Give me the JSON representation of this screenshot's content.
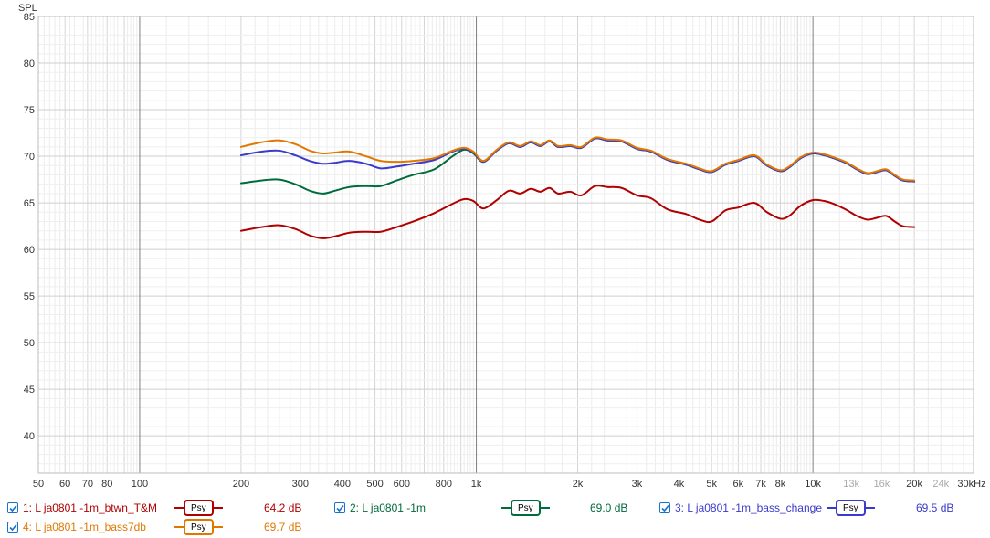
{
  "chart_data": {
    "type": "line",
    "title": "",
    "ylabel": "SPL",
    "xlabel": "",
    "x_scale": "log",
    "xlim": [
      50,
      30000
    ],
    "ylim": [
      36,
      85
    ],
    "grid": true,
    "y_ticks": [
      40,
      45,
      50,
      55,
      60,
      65,
      70,
      75,
      80,
      85
    ],
    "x_ticks": [
      {
        "value": 50,
        "label": "50"
      },
      {
        "value": 60,
        "label": "60"
      },
      {
        "value": 70,
        "label": "70"
      },
      {
        "value": 80,
        "label": "80"
      },
      {
        "value": 100,
        "label": "100"
      },
      {
        "value": 200,
        "label": "200"
      },
      {
        "value": 300,
        "label": "300"
      },
      {
        "value": 400,
        "label": "400"
      },
      {
        "value": 500,
        "label": "500"
      },
      {
        "value": 600,
        "label": "600"
      },
      {
        "value": 800,
        "label": "800"
      },
      {
        "value": 1000,
        "label": "1k"
      },
      {
        "value": 2000,
        "label": "2k"
      },
      {
        "value": 3000,
        "label": "3k"
      },
      {
        "value": 4000,
        "label": "4k"
      },
      {
        "value": 5000,
        "label": "5k"
      },
      {
        "value": 6000,
        "label": "6k"
      },
      {
        "value": 7000,
        "label": "7k"
      },
      {
        "value": 8000,
        "label": "8k"
      },
      {
        "value": 10000,
        "label": "10k"
      },
      {
        "value": 13000,
        "label": "13k",
        "minor": true
      },
      {
        "value": 16000,
        "label": "16k",
        "minor": true
      },
      {
        "value": 20000,
        "label": "20k"
      },
      {
        "value": 24000,
        "label": "24k",
        "minor": true
      },
      {
        "value": 30000,
        "label": "30kHz"
      }
    ],
    "series": [
      {
        "name": "1: L ja0801 -1m_btwn_T&M",
        "color": "#b00000",
        "value_label": "64.2 dB",
        "x": [
          200,
          230,
          260,
          290,
          320,
          350,
          380,
          420,
          470,
          520,
          580,
          650,
          750,
          850,
          920,
          980,
          1050,
          1150,
          1250,
          1350,
          1450,
          1550,
          1650,
          1750,
          1900,
          2050,
          2250,
          2450,
          2700,
          3000,
          3300,
          3700,
          4200,
          4600,
          5000,
          5500,
          6000,
          6700,
          7300,
          8000,
          8500,
          9200,
          10000,
          10800,
          11500,
          12500,
          13500,
          14500,
          15500,
          16500,
          17500,
          18500,
          20000
        ],
        "y": [
          62.0,
          62.4,
          62.6,
          62.2,
          61.5,
          61.2,
          61.4,
          61.8,
          61.9,
          61.9,
          62.4,
          63.0,
          63.9,
          64.9,
          65.4,
          65.2,
          64.4,
          65.3,
          66.3,
          66.0,
          66.5,
          66.2,
          66.6,
          66.0,
          66.2,
          65.8,
          66.8,
          66.7,
          66.6,
          65.8,
          65.5,
          64.3,
          63.8,
          63.2,
          63.0,
          64.2,
          64.5,
          65.0,
          64.0,
          63.3,
          63.6,
          64.7,
          65.3,
          65.2,
          64.9,
          64.3,
          63.6,
          63.2,
          63.4,
          63.6,
          63.0,
          62.5,
          62.4
        ]
      },
      {
        "name": "2: L ja0801 -1m",
        "color": "#006b3c",
        "value_label": "69.0 dB",
        "x": [
          200,
          230,
          260,
          290,
          320,
          350,
          380,
          420,
          470,
          520,
          580,
          650,
          750,
          850,
          920,
          980,
          1050,
          1150,
          1250,
          1350,
          1450,
          1550,
          1650,
          1750,
          1900,
          2050,
          2250,
          2450,
          2700,
          3000,
          3300,
          3700,
          4200,
          4600,
          5000,
          5500,
          6000,
          6700,
          7300,
          8000,
          8500,
          9200,
          10000,
          10800,
          11500,
          12500,
          13500,
          14500,
          15500,
          16500,
          17500,
          18500,
          20000
        ],
        "y": [
          67.1,
          67.4,
          67.5,
          67.0,
          66.3,
          66.0,
          66.3,
          66.7,
          66.8,
          66.8,
          67.4,
          68.0,
          68.6,
          70.0,
          70.7,
          70.3,
          69.4,
          70.6,
          71.4,
          71.0,
          71.5,
          71.1,
          71.6,
          71.0,
          71.1,
          70.9,
          71.9,
          71.7,
          71.6,
          70.8,
          70.5,
          69.6,
          69.1,
          68.6,
          68.3,
          69.1,
          69.5,
          70.0,
          69.0,
          68.4,
          68.8,
          69.8,
          70.3,
          70.1,
          69.8,
          69.3,
          68.6,
          68.1,
          68.3,
          68.5,
          67.9,
          67.4,
          67.3
        ]
      },
      {
        "name": "3: L ja0801 -1m_bass_change",
        "color": "#3a3acc",
        "value_label": "69.5 dB",
        "x": [
          200,
          230,
          260,
          290,
          320,
          350,
          380,
          420,
          470,
          520,
          580,
          650,
          750,
          850,
          920,
          980,
          1050,
          1150,
          1250,
          1350,
          1450,
          1550,
          1650,
          1750,
          1900,
          2050,
          2250,
          2450,
          2700,
          3000,
          3300,
          3700,
          4200,
          4600,
          5000,
          5500,
          6000,
          6700,
          7300,
          8000,
          8500,
          9200,
          10000,
          10800,
          11500,
          12500,
          13500,
          14500,
          15500,
          16500,
          17500,
          18500,
          20000
        ],
        "y": [
          70.1,
          70.5,
          70.6,
          70.1,
          69.5,
          69.2,
          69.3,
          69.5,
          69.2,
          68.7,
          68.9,
          69.2,
          69.6,
          70.5,
          70.8,
          70.4,
          69.4,
          70.6,
          71.4,
          71.0,
          71.5,
          71.1,
          71.6,
          71.0,
          71.1,
          70.9,
          71.9,
          71.7,
          71.6,
          70.8,
          70.5,
          69.6,
          69.1,
          68.6,
          68.3,
          69.1,
          69.5,
          70.0,
          69.0,
          68.4,
          68.8,
          69.8,
          70.3,
          70.1,
          69.8,
          69.3,
          68.6,
          68.1,
          68.3,
          68.5,
          67.9,
          67.4,
          67.3
        ]
      },
      {
        "name": "4: L ja0801 -1m_bass7db",
        "color": "#e07800",
        "value_label": "69.7 dB",
        "x": [
          200,
          230,
          260,
          290,
          320,
          350,
          380,
          420,
          470,
          520,
          580,
          650,
          750,
          850,
          920,
          980,
          1050,
          1150,
          1250,
          1350,
          1450,
          1550,
          1650,
          1750,
          1900,
          2050,
          2250,
          2450,
          2700,
          3000,
          3300,
          3700,
          4200,
          4600,
          5000,
          5500,
          6000,
          6700,
          7300,
          8000,
          8500,
          9200,
          10000,
          10800,
          11500,
          12500,
          13500,
          14500,
          15500,
          16500,
          17500,
          18500,
          20000
        ],
        "y": [
          71.0,
          71.5,
          71.7,
          71.3,
          70.6,
          70.3,
          70.4,
          70.5,
          70.0,
          69.5,
          69.4,
          69.5,
          69.8,
          70.6,
          70.9,
          70.5,
          69.5,
          70.7,
          71.5,
          71.1,
          71.6,
          71.2,
          71.7,
          71.1,
          71.2,
          71.0,
          72.0,
          71.8,
          71.7,
          70.9,
          70.6,
          69.7,
          69.2,
          68.7,
          68.4,
          69.2,
          69.6,
          70.1,
          69.1,
          68.5,
          68.9,
          69.9,
          70.4,
          70.2,
          69.9,
          69.4,
          68.7,
          68.2,
          68.4,
          68.6,
          68.0,
          67.5,
          67.4
        ]
      }
    ]
  },
  "legend": {
    "psy_label": "Psy",
    "items": [
      {
        "name": "1: L ja0801 -1m_btwn_T&M",
        "value": "64.2 dB",
        "color": "#b00000",
        "checked": true
      },
      {
        "name": "2: L ja0801 -1m",
        "value": "69.0 dB",
        "color": "#006b3c",
        "checked": true
      },
      {
        "name": "3: L ja0801 -1m_bass_change",
        "value": "69.5 dB",
        "color": "#3a3acc",
        "checked": true
      },
      {
        "name": "4: L ja0801 -1m_bass7db",
        "value": "69.7 dB",
        "color": "#e07800",
        "checked": true
      }
    ]
  }
}
